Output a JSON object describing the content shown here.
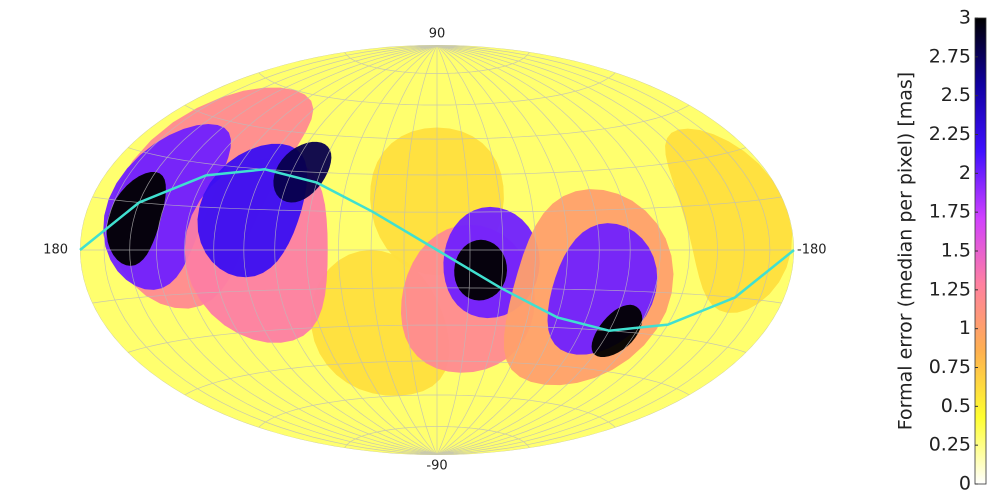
{
  "chart_data": {
    "type": "skymap",
    "projection": "hammer",
    "colorbar_label": "Formal error (median per pixel) [mas]",
    "clim": [
      0,
      3
    ],
    "cticks": [
      0,
      0.25,
      0.5,
      0.75,
      1,
      1.25,
      1.5,
      1.75,
      2,
      2.25,
      2.5,
      2.75,
      3
    ],
    "colormap": [
      "#ffffff",
      "#ffff30",
      "#ffb050",
      "#ff80a0",
      "#d040ff",
      "#4010ff",
      "#1000a0",
      "#000000"
    ],
    "xlim": [
      180,
      -180
    ],
    "ylim": [
      -90,
      90
    ],
    "background_value": 0.3,
    "regions": [
      {
        "lon": 0,
        "lat": 20,
        "r": 30,
        "value": 0.6
      },
      {
        "lon": 30,
        "lat": -30,
        "r": 30,
        "value": 0.6
      },
      {
        "lon": -150,
        "lat": 10,
        "r": 30,
        "value": 0.6
      },
      {
        "lon": 125,
        "lat": 20,
        "r": 40,
        "value": 1.2
      },
      {
        "lon": 140,
        "lat": 15,
        "r": 28,
        "value": 2
      },
      {
        "lon": 150,
        "lat": 10,
        "r": 15,
        "value": 3
      },
      {
        "lon": 85,
        "lat": 0,
        "r": 35,
        "value": 1.3
      },
      {
        "lon": 90,
        "lat": 15,
        "r": 25,
        "value": 2.2
      },
      {
        "lon": 70,
        "lat": 30,
        "r": 12,
        "value": 2.8
      },
      {
        "lon": -15,
        "lat": -20,
        "r": 30,
        "value": 1.2
      },
      {
        "lon": -25,
        "lat": -5,
        "r": 22,
        "value": 2
      },
      {
        "lon": -20,
        "lat": -8,
        "r": 12,
        "value": 3
      },
      {
        "lon": -75,
        "lat": -15,
        "r": 38,
        "value": 1
      },
      {
        "lon": -80,
        "lat": -15,
        "r": 25,
        "value": 2
      },
      {
        "lon": -95,
        "lat": -30,
        "r": 10,
        "value": 3
      }
    ],
    "curve": {
      "color": "#40e0d0",
      "x": [
        180,
        150,
        120,
        90,
        60,
        30,
        0,
        -30,
        -60,
        -90,
        -120,
        -150,
        -180
      ],
      "y": [
        0,
        15,
        26,
        30,
        26,
        15,
        0,
        -15,
        -26,
        -30,
        -26,
        -15,
        0
      ]
    }
  }
}
